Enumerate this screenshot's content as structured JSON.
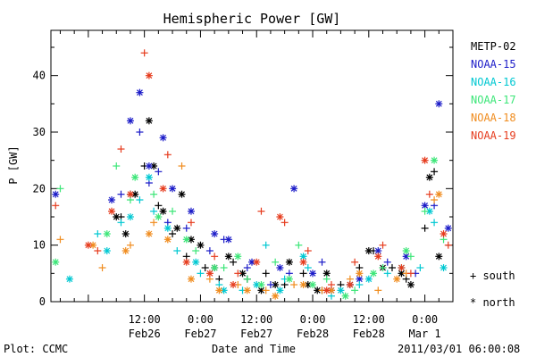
{
  "chart_data": {
    "type": "scatter",
    "title": "Hemispheric Power [GW]",
    "xlabel": "Date and Time",
    "ylabel": "P [GW]",
    "xlim": [
      "2011-02-25T16:00",
      "2011-03-01T06:00"
    ],
    "ylim": [
      0,
      48
    ],
    "yticks": [
      0,
      10,
      20,
      30,
      40
    ],
    "xticks": [
      {
        "x": "2011-02-26T12:00",
        "l1": "12:00",
        "l2": "Feb26"
      },
      {
        "x": "2011-02-27T00:00",
        "l1": "0:00",
        "l2": "Feb27"
      },
      {
        "x": "2011-02-27T12:00",
        "l1": "12:00",
        "l2": "Feb27"
      },
      {
        "x": "2011-02-28T00:00",
        "l1": "0:00",
        "l2": "Feb28"
      },
      {
        "x": "2011-02-28T12:00",
        "l1": "12:00",
        "l2": "Feb28"
      },
      {
        "x": "2011-03-01T00:00",
        "l1": "0:00",
        "l2": "Mar 1"
      }
    ],
    "grid": false,
    "legend_position": "right",
    "marker_legend": [
      {
        "symbol": "+",
        "label": "south"
      },
      {
        "symbol": "*",
        "label": "north"
      }
    ],
    "series": [
      {
        "name": "METP-02",
        "color": "#000000",
        "south": [
          [
            "2011-02-26T07:00",
            15
          ],
          [
            "2011-02-26T09:00",
            19
          ],
          [
            "2011-02-26T12:00",
            24
          ],
          [
            "2011-02-26T15:00",
            17
          ],
          [
            "2011-02-26T18:00",
            12
          ],
          [
            "2011-02-26T21:00",
            8
          ],
          [
            "2011-02-27T01:00",
            6
          ],
          [
            "2011-02-27T04:00",
            4
          ],
          [
            "2011-02-27T07:00",
            7
          ],
          [
            "2011-02-27T10:00",
            4
          ],
          [
            "2011-02-27T14:00",
            5
          ],
          [
            "2011-02-27T18:00",
            3
          ],
          [
            "2011-02-27T22:00",
            5
          ],
          [
            "2011-02-28T02:00",
            2
          ],
          [
            "2011-02-28T06:00",
            3
          ],
          [
            "2011-02-28T10:00",
            6
          ],
          [
            "2011-02-28T13:00",
            9
          ],
          [
            "2011-02-28T17:00",
            6
          ],
          [
            "2011-02-28T20:00",
            4
          ],
          [
            "2011-03-01T00:00",
            13
          ],
          [
            "2011-03-01T02:00",
            23
          ]
        ],
        "north": [
          [
            "2011-02-26T06:00",
            15
          ],
          [
            "2011-02-26T08:00",
            12
          ],
          [
            "2011-02-26T10:00",
            19
          ],
          [
            "2011-02-26T13:00",
            32
          ],
          [
            "2011-02-26T14:00",
            24
          ],
          [
            "2011-02-26T16:00",
            16
          ],
          [
            "2011-02-26T19:00",
            13
          ],
          [
            "2011-02-26T20:00",
            19
          ],
          [
            "2011-02-26T22:00",
            11
          ],
          [
            "2011-02-27T00:00",
            10
          ],
          [
            "2011-02-27T03:00",
            6
          ],
          [
            "2011-02-27T06:00",
            8
          ],
          [
            "2011-02-27T09:00",
            5
          ],
          [
            "2011-02-27T13:00",
            2
          ],
          [
            "2011-02-27T16:00",
            3
          ],
          [
            "2011-02-27T19:00",
            7
          ],
          [
            "2011-02-27T23:00",
            3
          ],
          [
            "2011-02-28T01:00",
            2
          ],
          [
            "2011-02-28T03:00",
            5
          ],
          [
            "2011-02-28T08:00",
            3
          ],
          [
            "2011-02-28T12:00",
            9
          ],
          [
            "2011-02-28T15:00",
            6
          ],
          [
            "2011-02-28T19:00",
            5
          ],
          [
            "2011-02-28T21:00",
            3
          ],
          [
            "2011-03-01T01:00",
            22
          ],
          [
            "2011-03-01T03:00",
            8
          ]
        ]
      },
      {
        "name": "NOAA-15",
        "color": "#1c1cc8",
        "south": [
          [
            "2011-02-26T07:00",
            19
          ],
          [
            "2011-02-26T11:00",
            30
          ],
          [
            "2011-02-26T13:00",
            21
          ],
          [
            "2011-02-26T15:00",
            23
          ],
          [
            "2011-02-26T17:00",
            14
          ],
          [
            "2011-02-26T21:00",
            13
          ],
          [
            "2011-02-27T02:00",
            9
          ],
          [
            "2011-02-27T05:00",
            11
          ],
          [
            "2011-02-27T10:00",
            6
          ],
          [
            "2011-02-27T15:00",
            3
          ],
          [
            "2011-02-27T19:00",
            5
          ],
          [
            "2011-02-28T02:00",
            7
          ],
          [
            "2011-02-28T08:00",
            3
          ],
          [
            "2011-02-28T16:00",
            7
          ],
          [
            "2011-02-28T22:00",
            5
          ],
          [
            "2011-03-01T02:00",
            17
          ]
        ],
        "north": [
          [
            "2011-02-25T17:00",
            19
          ],
          [
            "2011-02-26T05:00",
            18
          ],
          [
            "2011-02-26T09:00",
            32
          ],
          [
            "2011-02-26T11:00",
            37
          ],
          [
            "2011-02-26T13:00",
            24
          ],
          [
            "2011-02-26T16:00",
            29
          ],
          [
            "2011-02-26T18:00",
            20
          ],
          [
            "2011-02-26T22:00",
            16
          ],
          [
            "2011-02-27T03:00",
            12
          ],
          [
            "2011-02-27T06:00",
            11
          ],
          [
            "2011-02-27T11:00",
            7
          ],
          [
            "2011-02-27T17:00",
            6
          ],
          [
            "2011-02-27T20:00",
            20
          ],
          [
            "2011-02-28T00:00",
            5
          ],
          [
            "2011-02-28T04:00",
            2
          ],
          [
            "2011-02-28T10:00",
            4
          ],
          [
            "2011-02-28T14:00",
            9
          ],
          [
            "2011-02-28T20:00",
            8
          ],
          [
            "2011-03-01T00:00",
            17
          ],
          [
            "2011-03-01T03:00",
            35
          ],
          [
            "2011-03-01T05:00",
            13
          ]
        ]
      },
      {
        "name": "NOAA-16",
        "color": "#00c8d2",
        "south": [
          [
            "2011-02-26T02:00",
            12
          ],
          [
            "2011-02-26T07:00",
            14
          ],
          [
            "2011-02-26T11:00",
            18
          ],
          [
            "2011-02-26T14:00",
            16
          ],
          [
            "2011-02-26T19:00",
            9
          ],
          [
            "2011-02-27T00:00",
            5
          ],
          [
            "2011-02-27T04:00",
            3
          ],
          [
            "2011-02-27T09:00",
            2
          ],
          [
            "2011-02-27T14:00",
            10
          ],
          [
            "2011-02-27T18:00",
            4
          ],
          [
            "2011-02-27T23:00",
            6
          ],
          [
            "2011-02-28T04:00",
            1
          ],
          [
            "2011-02-28T10:00",
            3
          ],
          [
            "2011-02-28T16:00",
            5
          ],
          [
            "2011-02-28T23:00",
            6
          ],
          [
            "2011-03-01T02:00",
            14
          ]
        ],
        "north": [
          [
            "2011-02-25T20:00",
            4
          ],
          [
            "2011-02-26T04:00",
            9
          ],
          [
            "2011-02-26T09:00",
            15
          ],
          [
            "2011-02-26T13:00",
            22
          ],
          [
            "2011-02-26T17:00",
            13
          ],
          [
            "2011-02-26T23:00",
            7
          ],
          [
            "2011-02-27T05:00",
            2
          ],
          [
            "2011-02-27T12:00",
            3
          ],
          [
            "2011-02-27T17:00",
            2
          ],
          [
            "2011-02-27T22:00",
            8
          ],
          [
            "2011-02-28T06:00",
            2
          ],
          [
            "2011-02-28T12:00",
            4
          ],
          [
            "2011-02-28T19:00",
            6
          ],
          [
            "2011-03-01T01:00",
            16
          ],
          [
            "2011-03-01T04:00",
            6
          ]
        ]
      },
      {
        "name": "NOAA-17",
        "color": "#3ce678",
        "south": [
          [
            "2011-02-25T18:00",
            20
          ],
          [
            "2011-02-26T06:00",
            24
          ],
          [
            "2011-02-26T09:00",
            18
          ],
          [
            "2011-02-26T14:00",
            19
          ],
          [
            "2011-02-26T18:00",
            16
          ],
          [
            "2011-02-26T23:00",
            9
          ],
          [
            "2011-02-27T05:00",
            6
          ],
          [
            "2011-02-27T10:00",
            4
          ],
          [
            "2011-02-27T16:00",
            7
          ],
          [
            "2011-02-27T21:00",
            10
          ],
          [
            "2011-02-28T03:00",
            4
          ],
          [
            "2011-02-28T09:00",
            2
          ],
          [
            "2011-02-28T15:00",
            6
          ],
          [
            "2011-02-28T21:00",
            8
          ],
          [
            "2011-03-01T00:00",
            16
          ],
          [
            "2011-03-01T04:00",
            11
          ]
        ],
        "north": [
          [
            "2011-02-25T17:00",
            7
          ],
          [
            "2011-02-26T04:00",
            12
          ],
          [
            "2011-02-26T10:00",
            22
          ],
          [
            "2011-02-26T15:00",
            15
          ],
          [
            "2011-02-26T21:00",
            11
          ],
          [
            "2011-02-27T03:00",
            6
          ],
          [
            "2011-02-27T08:00",
            8
          ],
          [
            "2011-02-27T13:00",
            3
          ],
          [
            "2011-02-27T19:00",
            4
          ],
          [
            "2011-02-28T00:00",
            3
          ],
          [
            "2011-02-28T07:00",
            1
          ],
          [
            "2011-02-28T13:00",
            5
          ],
          [
            "2011-02-28T20:00",
            9
          ],
          [
            "2011-03-01T02:00",
            25
          ]
        ]
      },
      {
        "name": "NOAA-18",
        "color": "#f08c1e",
        "south": [
          [
            "2011-02-25T18:00",
            11
          ],
          [
            "2011-02-26T03:00",
            6
          ],
          [
            "2011-02-26T09:00",
            10
          ],
          [
            "2011-02-26T14:00",
            14
          ],
          [
            "2011-02-26T20:00",
            24
          ],
          [
            "2011-02-27T02:00",
            4
          ],
          [
            "2011-02-27T08:00",
            3
          ],
          [
            "2011-02-27T14:00",
            2
          ],
          [
            "2011-02-27T20:00",
            3
          ],
          [
            "2011-02-28T02:00",
            2
          ],
          [
            "2011-02-28T08:00",
            4
          ],
          [
            "2011-02-28T14:00",
            2
          ],
          [
            "2011-02-28T20:00",
            5
          ],
          [
            "2011-03-01T02:00",
            18
          ]
        ],
        "north": [
          [
            "2011-02-26T01:00",
            10
          ],
          [
            "2011-02-26T08:00",
            9
          ],
          [
            "2011-02-26T13:00",
            12
          ],
          [
            "2011-02-26T17:00",
            11
          ],
          [
            "2011-02-26T22:00",
            4
          ],
          [
            "2011-02-27T04:00",
            2
          ],
          [
            "2011-02-27T10:00",
            2
          ],
          [
            "2011-02-27T16:00",
            1
          ],
          [
            "2011-02-27T22:00",
            3
          ],
          [
            "2011-02-28T04:00",
            2
          ],
          [
            "2011-02-28T10:00",
            5
          ],
          [
            "2011-02-28T18:00",
            4
          ],
          [
            "2011-03-01T03:00",
            19
          ]
        ]
      },
      {
        "name": "NOAA-19",
        "color": "#e63c1e",
        "south": [
          [
            "2011-02-25T17:00",
            17
          ],
          [
            "2011-02-26T02:00",
            9
          ],
          [
            "2011-02-26T07:00",
            27
          ],
          [
            "2011-02-26T12:00",
            44
          ],
          [
            "2011-02-26T17:00",
            26
          ],
          [
            "2011-02-26T22:00",
            14
          ],
          [
            "2011-02-27T03:00",
            8
          ],
          [
            "2011-02-27T08:00",
            5
          ],
          [
            "2011-02-27T13:00",
            16
          ],
          [
            "2011-02-27T18:00",
            14
          ],
          [
            "2011-02-27T23:00",
            9
          ],
          [
            "2011-02-28T04:00",
            3
          ],
          [
            "2011-02-28T09:00",
            7
          ],
          [
            "2011-02-28T15:00",
            10
          ],
          [
            "2011-02-28T21:00",
            5
          ],
          [
            "2011-03-01T01:00",
            19
          ],
          [
            "2011-03-01T05:00",
            10
          ]
        ],
        "north": [
          [
            "2011-02-26T00:00",
            10
          ],
          [
            "2011-02-26T05:00",
            16
          ],
          [
            "2011-02-26T09:00",
            19
          ],
          [
            "2011-02-26T13:00",
            40
          ],
          [
            "2011-02-26T16:00",
            20
          ],
          [
            "2011-02-26T21:00",
            7
          ],
          [
            "2011-02-27T02:00",
            5
          ],
          [
            "2011-02-27T07:00",
            3
          ],
          [
            "2011-02-27T12:00",
            7
          ],
          [
            "2011-02-27T17:00",
            15
          ],
          [
            "2011-02-27T22:00",
            7
          ],
          [
            "2011-02-28T03:00",
            2
          ],
          [
            "2011-02-28T08:00",
            3
          ],
          [
            "2011-02-28T14:00",
            8
          ],
          [
            "2011-02-28T19:00",
            6
          ],
          [
            "2011-03-01T00:00",
            25
          ],
          [
            "2011-03-01T04:00",
            12
          ]
        ]
      }
    ]
  },
  "footer": {
    "left": "Plot: CCMC",
    "center": "Date and Time",
    "right": "2011/03/01 06:00:08"
  }
}
